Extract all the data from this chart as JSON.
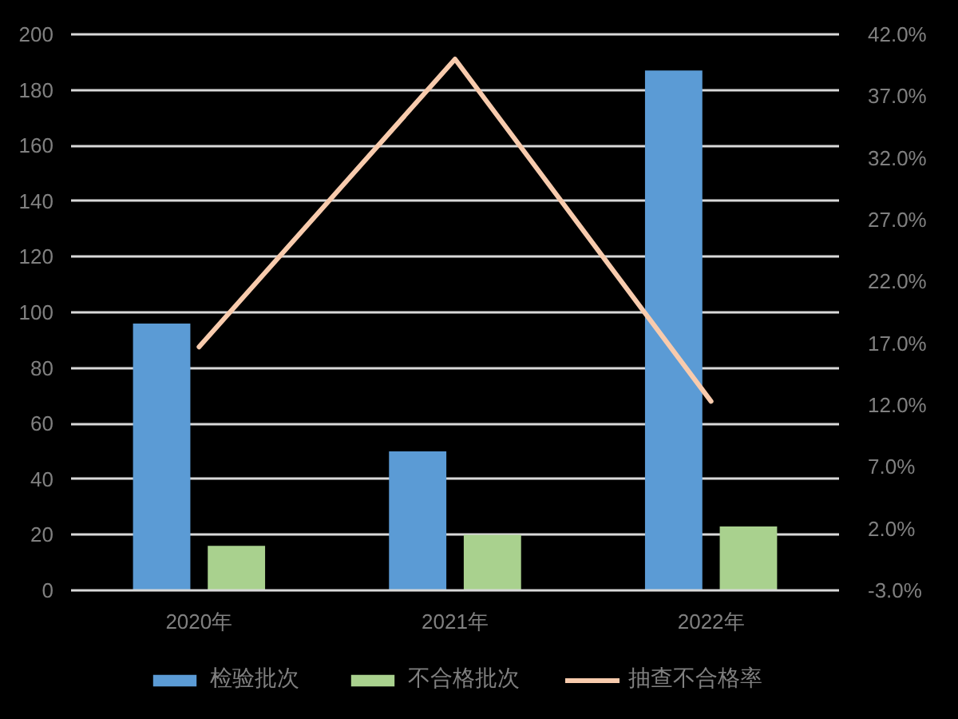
{
  "chart_data": {
    "type": "bar",
    "categories": [
      "2020年",
      "2021年",
      "2022年"
    ],
    "series": [
      {
        "name": "检验批次",
        "color": "#5b9bd5",
        "values": [
          96,
          50,
          187
        ]
      },
      {
        "name": "不合格批次",
        "color": "#a9d18e",
        "values": [
          16,
          20,
          23
        ]
      },
      {
        "name": "抽查不合格率",
        "type": "line",
        "axis": "y2",
        "color": "#f8cbad",
        "values": [
          16.7,
          40.0,
          12.3
        ]
      }
    ],
    "ylim": [
      0,
      200
    ],
    "yticks": [
      0,
      20,
      40,
      60,
      80,
      100,
      120,
      140,
      160,
      180,
      200
    ],
    "y2lim": [
      -3,
      42
    ],
    "y2ticks": [
      {
        "value": -3,
        "label": "-3.0%"
      },
      {
        "value": 2,
        "label": "2.0%"
      },
      {
        "value": 7,
        "label": "7.0%"
      },
      {
        "value": 12,
        "label": "12.0%"
      },
      {
        "value": 17,
        "label": "17.0%"
      },
      {
        "value": 22,
        "label": "22.0%"
      },
      {
        "value": 27,
        "label": "27.0%"
      },
      {
        "value": 32,
        "label": "32.0%"
      },
      {
        "value": 37,
        "label": "37.0%"
      },
      {
        "value": 42,
        "label": "42.0%"
      }
    ],
    "grid": "y",
    "legend": "bottom",
    "line_style": "solid"
  }
}
